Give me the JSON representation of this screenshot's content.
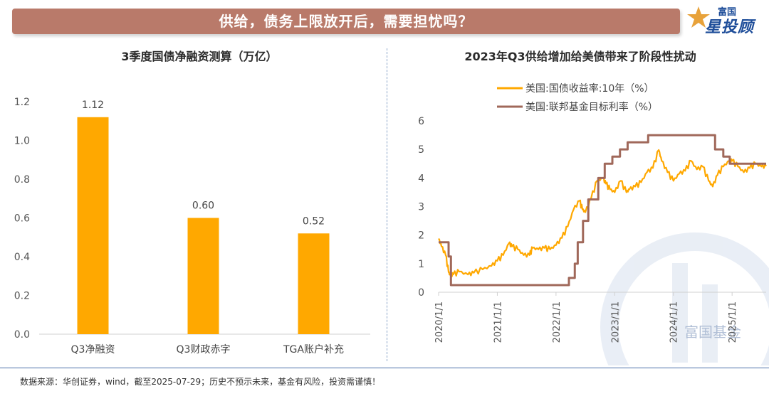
{
  "banner": {
    "title": "供给，债务上限放开后，需要担忧吗？"
  },
  "logo": {
    "small_text": "富国",
    "big_text": "星投顾"
  },
  "watermark": {
    "text": "富国基金"
  },
  "footer": {
    "text": "数据来源：华创证券，wind，截至2025-07-29；历史不预示未来，基金有风险，投资需谨慎！"
  },
  "colors": {
    "bar": "#ffa800",
    "yield": "#ffa800",
    "fed": "#a0685a",
    "banner": "#b97a6a",
    "axis": "#d0d0d0"
  },
  "chart_data": [
    {
      "type": "bar",
      "title": "3季度国债净融资测算（万亿）",
      "categories": [
        "Q3净融资",
        "Q3财政赤字",
        "TGA账户补充"
      ],
      "values": [
        1.12,
        0.6,
        0.52
      ],
      "value_labels": [
        "1.12",
        "0.60",
        "0.52"
      ],
      "ylim": [
        0,
        1.2
      ],
      "yticks": [
        "0.0",
        "0.2",
        "0.4",
        "0.6",
        "0.8",
        "1.0",
        "1.2"
      ],
      "xlabel": "",
      "ylabel": ""
    },
    {
      "type": "line",
      "title": "2023年Q3供给增加给美债带来了阶段性扰动",
      "ylim": [
        0,
        6
      ],
      "yticks": [
        "0",
        "1",
        "2",
        "3",
        "4",
        "5",
        "6"
      ],
      "xticks": [
        "2020/1/1",
        "2021/1/1",
        "2022/1/1",
        "2023/1/1",
        "2024/1/1",
        "2025/1/1"
      ],
      "xrange": [
        2020.0,
        2025.58
      ],
      "legend_position": "top-left",
      "series": [
        {
          "name": "美国:国债收益率:10年（%）",
          "x": [
            2020.0,
            2020.05,
            2020.12,
            2020.17,
            2020.2,
            2020.25,
            2020.35,
            2020.5,
            2020.6,
            2020.75,
            2020.9,
            2021.0,
            2021.1,
            2021.2,
            2021.25,
            2021.35,
            2021.45,
            2021.55,
            2021.6,
            2021.7,
            2021.8,
            2021.9,
            2022.0,
            2022.1,
            2022.2,
            2022.3,
            2022.4,
            2022.45,
            2022.5,
            2022.6,
            2022.7,
            2022.8,
            2022.85,
            2022.92,
            2023.0,
            2023.1,
            2023.2,
            2023.25,
            2023.35,
            2023.45,
            2023.55,
            2023.65,
            2023.75,
            2023.8,
            2023.9,
            2024.0,
            2024.1,
            2024.2,
            2024.3,
            2024.4,
            2024.5,
            2024.6,
            2024.67,
            2024.75,
            2024.85,
            2024.95,
            2025.0,
            2025.1,
            2025.2,
            2025.3,
            2025.4,
            2025.5,
            2025.58
          ],
          "values": [
            1.88,
            1.6,
            1.3,
            0.7,
            0.6,
            0.62,
            0.72,
            0.62,
            0.68,
            0.8,
            0.92,
            1.1,
            1.3,
            1.72,
            1.6,
            1.5,
            1.3,
            1.3,
            1.55,
            1.5,
            1.55,
            1.5,
            1.65,
            1.9,
            2.3,
            2.9,
            3.2,
            2.9,
            2.8,
            3.3,
            3.9,
            4.0,
            3.8,
            3.6,
            3.5,
            3.9,
            3.5,
            3.6,
            3.7,
            3.85,
            4.2,
            4.35,
            4.98,
            4.6,
            4.2,
            3.9,
            4.15,
            4.25,
            4.6,
            4.3,
            4.4,
            3.9,
            3.7,
            4.1,
            4.4,
            4.6,
            4.6,
            4.4,
            4.2,
            4.35,
            4.5,
            4.4,
            4.42
          ]
        },
        {
          "name": "美国:联邦基金目标利率（%）",
          "x": [
            2020.0,
            2020.17,
            2020.21,
            2022.22,
            2022.32,
            2022.37,
            2022.46,
            2022.55,
            2022.72,
            2022.83,
            2022.96,
            2023.09,
            2023.22,
            2023.34,
            2023.57,
            2024.71,
            2024.85,
            2024.96,
            2025.58
          ],
          "values": [
            1.75,
            1.25,
            0.25,
            0.5,
            1.0,
            1.75,
            2.5,
            3.25,
            4.0,
            4.5,
            4.75,
            5.0,
            5.25,
            5.25,
            5.5,
            5.0,
            4.75,
            4.5,
            4.5
          ],
          "step": true
        }
      ]
    }
  ]
}
